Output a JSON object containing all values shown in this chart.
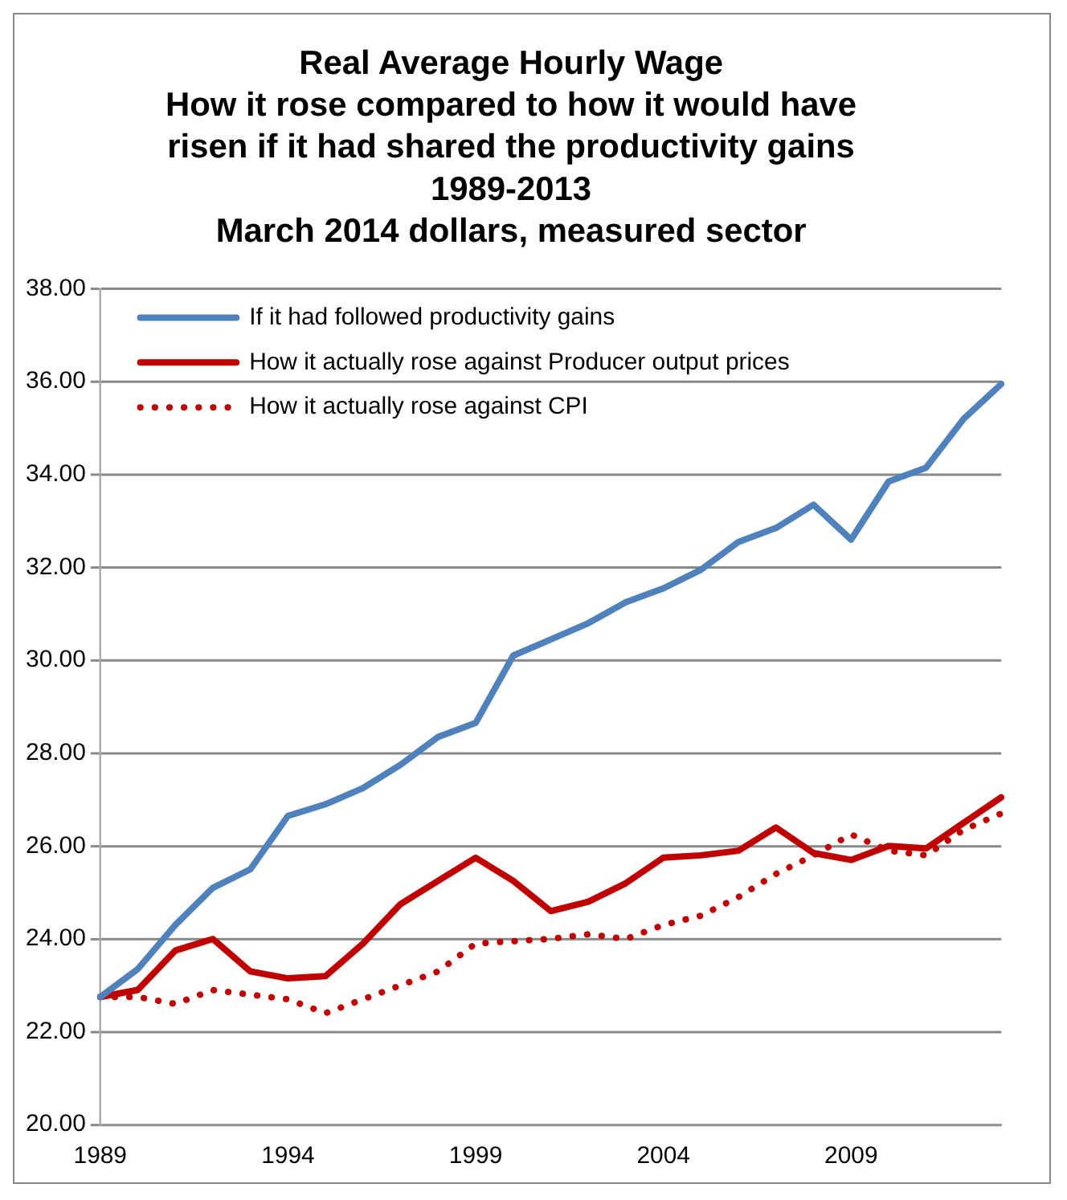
{
  "chart_data": {
    "type": "line",
    "title": "Real Average Hourly Wage\nHow it rose compared to how it would have\nrisen if it had shared the productivity gains\n1989-2013\nMarch 2014 dollars, measured sector",
    "categories": [
      "1989",
      null,
      null,
      null,
      null,
      "1994",
      null,
      null,
      null,
      null,
      "1999",
      null,
      null,
      null,
      null,
      "2004",
      null,
      null,
      null,
      null,
      "2009",
      null,
      null,
      null,
      null
    ],
    "series": [
      {
        "name": "If it had followed productivity gains",
        "color": "#4f81bd",
        "line_style": "solid",
        "values": [
          22.75,
          23.35,
          24.3,
          25.1,
          25.5,
          26.65,
          26.9,
          27.25,
          27.75,
          28.35,
          28.65,
          30.1,
          30.45,
          30.8,
          31.25,
          31.55,
          31.95,
          32.55,
          32.85,
          33.35,
          32.6,
          33.85,
          34.15,
          35.2,
          35.95
        ]
      },
      {
        "name": "How it actually rose against Producer output prices",
        "color": "#c00000",
        "line_style": "solid",
        "values": [
          22.75,
          22.9,
          23.75,
          24.0,
          23.3,
          23.15,
          23.2,
          23.9,
          24.75,
          25.25,
          25.75,
          25.25,
          24.6,
          24.8,
          25.2,
          25.75,
          25.8,
          25.9,
          26.4,
          25.85,
          25.7,
          26.0,
          25.95,
          26.5,
          27.05
        ]
      },
      {
        "name": "How it actually rose against CPI",
        "color": "#c00000",
        "line_style": "dotted",
        "values": [
          22.75,
          22.75,
          22.6,
          22.9,
          22.8,
          22.7,
          22.4,
          22.7,
          23.0,
          23.3,
          23.9,
          23.95,
          24.0,
          24.1,
          24.0,
          24.3,
          24.5,
          24.9,
          25.4,
          25.8,
          26.25,
          25.9,
          25.8,
          26.35,
          26.7
        ]
      }
    ],
    "ylim": [
      20,
      38
    ],
    "yticks": [
      {
        "value": 20,
        "label": "20.00"
      },
      {
        "value": 22,
        "label": "22.00"
      },
      {
        "value": 24,
        "label": "24.00"
      },
      {
        "value": 26,
        "label": "26.00"
      },
      {
        "value": 28,
        "label": "28.00"
      },
      {
        "value": 30,
        "label": "30.00"
      },
      {
        "value": 32,
        "label": "32.00"
      },
      {
        "value": 34,
        "label": "34.00"
      },
      {
        "value": 36,
        "label": "36.00"
      },
      {
        "value": 38,
        "label": "38.00"
      }
    ],
    "grid": "y",
    "legend": "top left",
    "marker": "none"
  }
}
